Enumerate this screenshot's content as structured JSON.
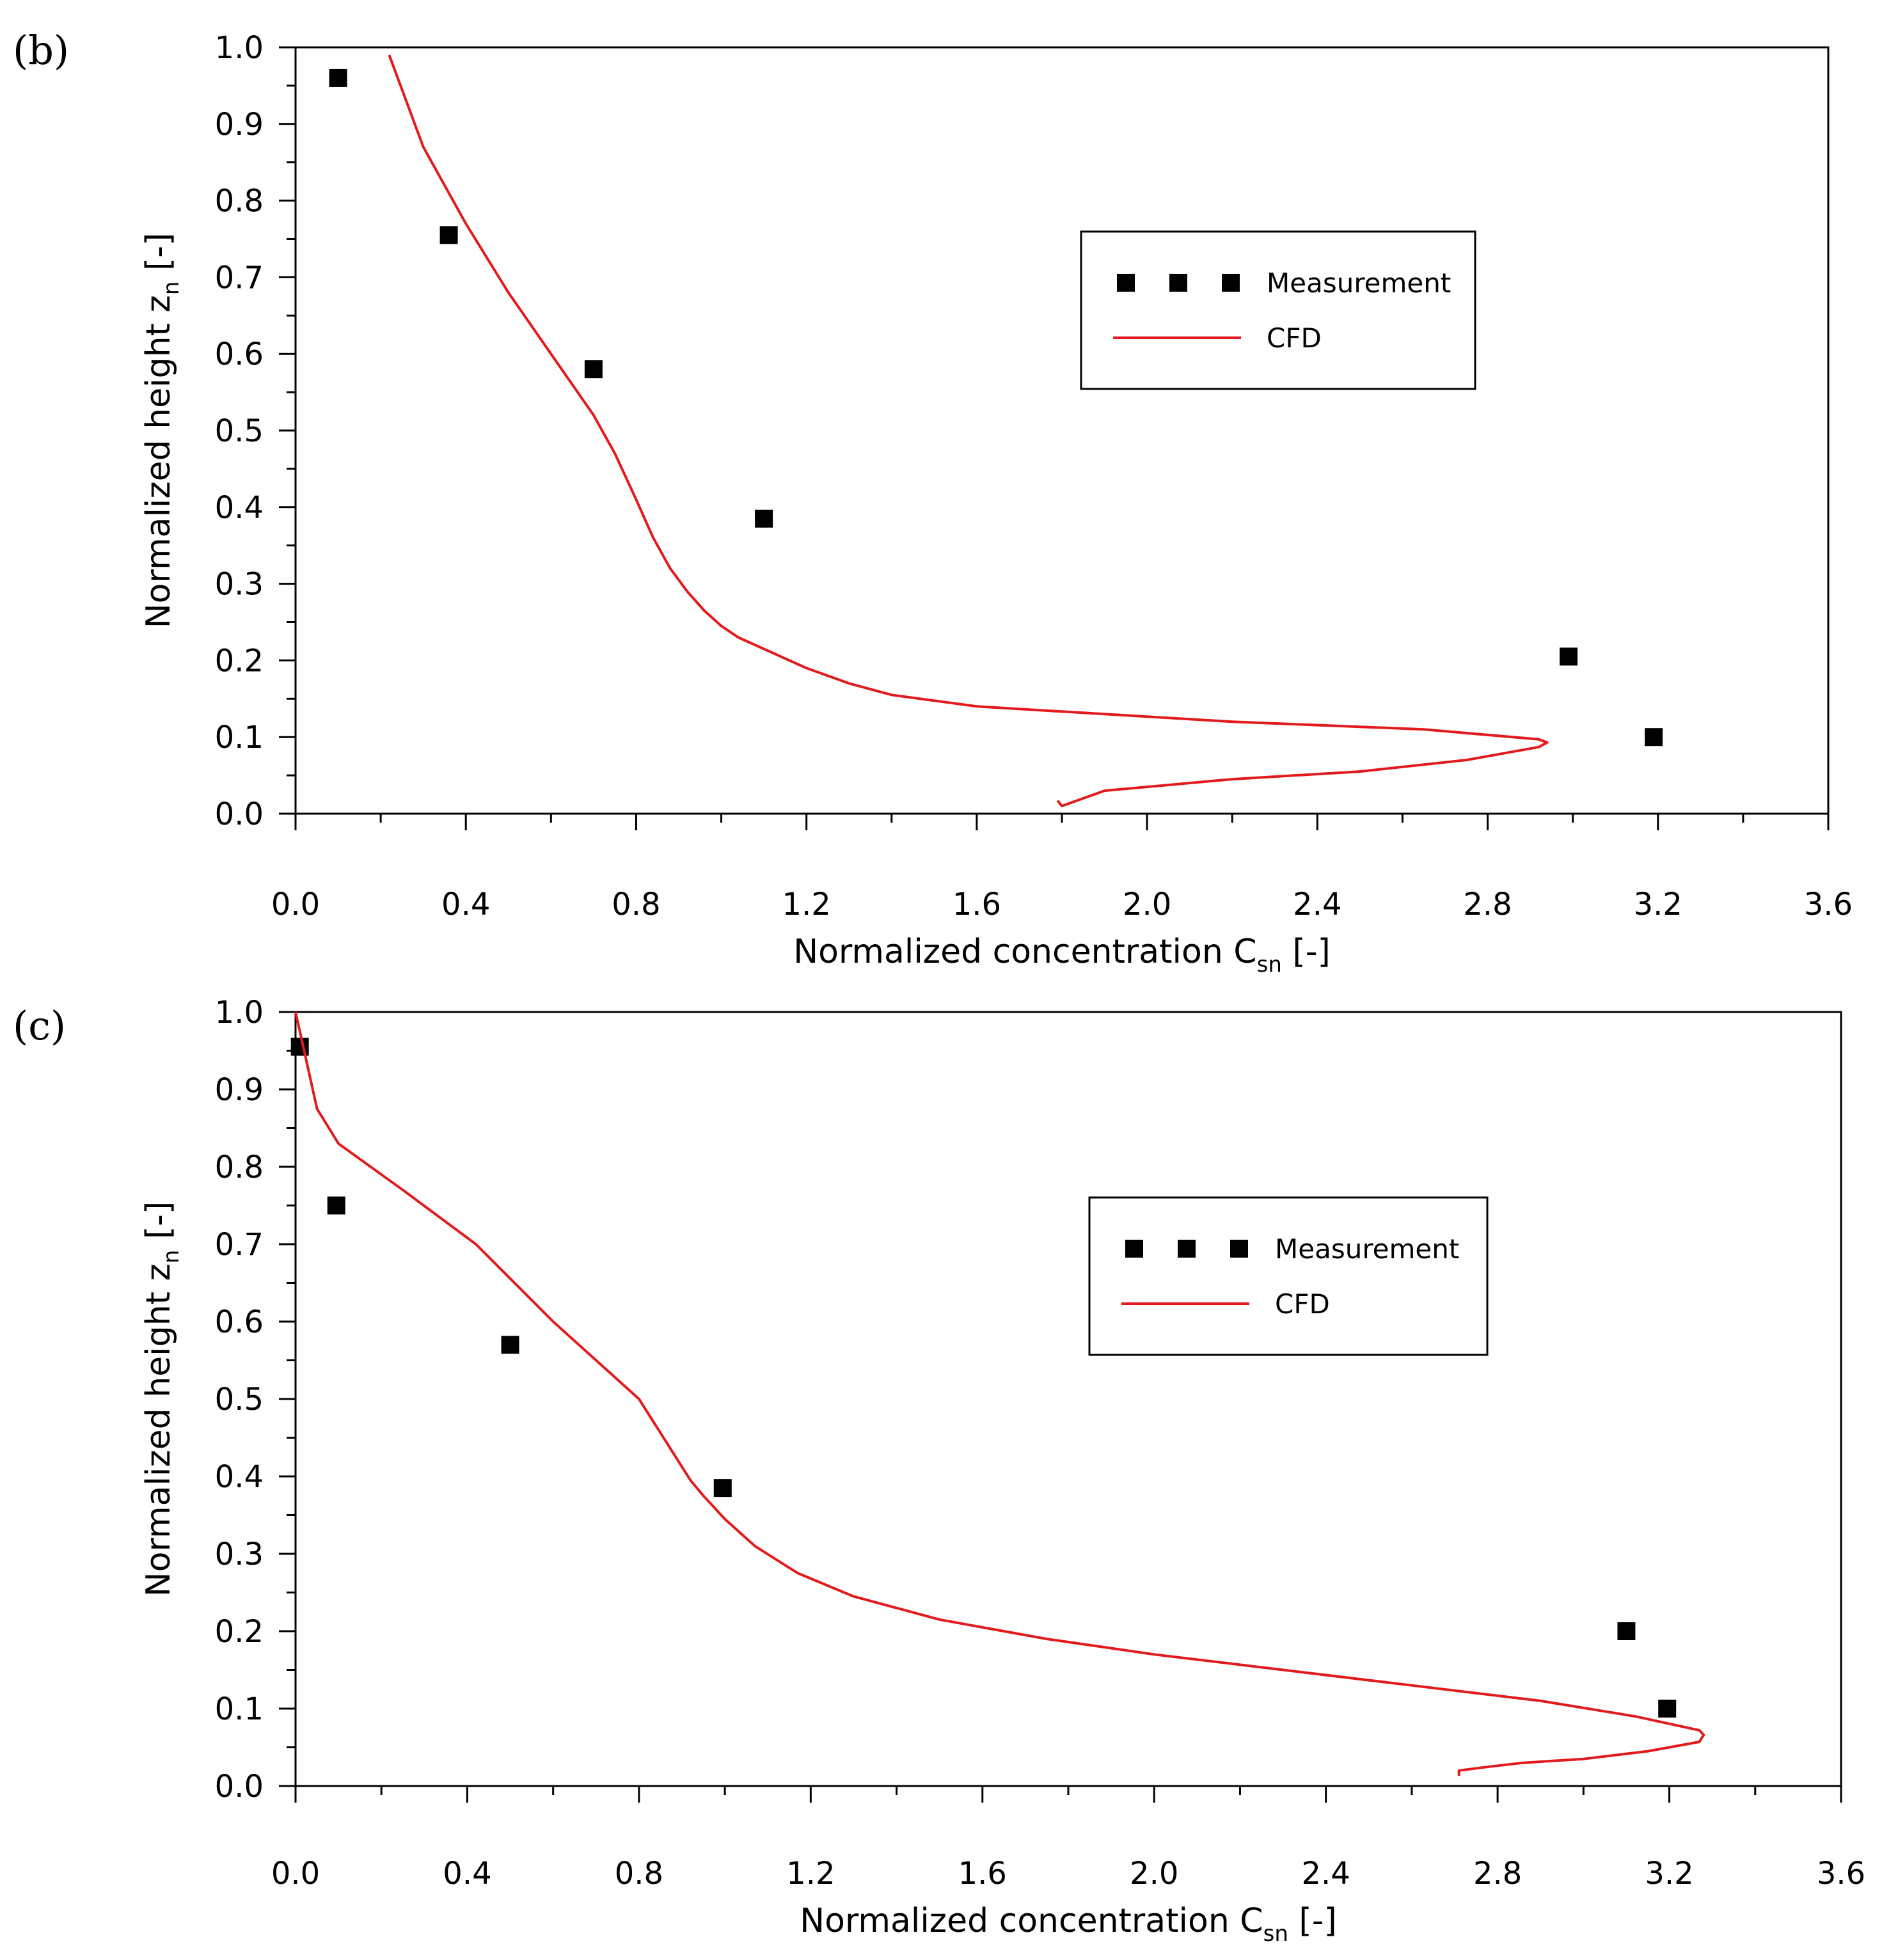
{
  "colors": {
    "measurement": "#000000",
    "cfd": "#e31a1c",
    "axis": "#000000"
  },
  "chart_data": [
    {
      "panel": "(b)",
      "type": "scatter",
      "xlabel": "Normalized concentration C",
      "xlabel_sub": "sn",
      "xlabel_suffix": " [-]",
      "ylabel": "Normalized height z",
      "ylabel_sub": "n",
      "ylabel_suffix": " [-]",
      "xlim": [
        0,
        3.6
      ],
      "ylim": [
        0,
        1.0
      ],
      "xticks": [
        "0.0",
        "0.4",
        "0.8",
        "1.2",
        "1.6",
        "2.0",
        "2.4",
        "2.8",
        "3.2",
        "3.6"
      ],
      "yticks": [
        "0.0",
        "0.1",
        "0.2",
        "0.3",
        "0.4",
        "0.5",
        "0.6",
        "0.7",
        "0.8",
        "0.9",
        "1.0"
      ],
      "legend": {
        "position": "upper-right",
        "measurement": "Measurement",
        "cfd": "CFD"
      },
      "series": [
        {
          "name": "Measurement",
          "type": "scatter",
          "x": [
            0.1,
            0.36,
            0.7,
            1.1,
            2.99,
            3.19
          ],
          "y": [
            0.96,
            0.755,
            0.58,
            0.385,
            0.205,
            0.1
          ]
        },
        {
          "name": "CFD",
          "type": "line",
          "x": [
            1.79,
            1.8,
            1.9,
            2.2,
            2.5,
            2.75,
            2.85,
            2.92,
            2.94,
            2.92,
            2.65,
            2.2,
            1.9,
            1.6,
            1.4,
            1.3,
            1.2,
            1.1,
            1.04,
            1.0,
            0.96,
            0.92,
            0.88,
            0.84,
            0.8,
            0.75,
            0.7,
            0.6,
            0.5,
            0.4,
            0.3,
            0.22
          ],
          "y": [
            0.017,
            0.01,
            0.03,
            0.045,
            0.055,
            0.07,
            0.08,
            0.087,
            0.093,
            0.097,
            0.11,
            0.12,
            0.13,
            0.14,
            0.155,
            0.17,
            0.19,
            0.215,
            0.23,
            0.245,
            0.265,
            0.29,
            0.32,
            0.36,
            0.41,
            0.47,
            0.52,
            0.6,
            0.68,
            0.77,
            0.87,
            0.99
          ]
        }
      ]
    },
    {
      "panel": "(c)",
      "type": "scatter",
      "xlabel": "Normalized concentration C",
      "xlabel_sub": "sn",
      "xlabel_suffix": " [-]",
      "ylabel": "Normalized height z",
      "ylabel_sub": "n",
      "ylabel_suffix": " [-]",
      "xlim": [
        0,
        3.6
      ],
      "ylim": [
        0,
        1.0
      ],
      "xticks": [
        "0.0",
        "0.4",
        "0.8",
        "1.2",
        "1.6",
        "2.0",
        "2.4",
        "2.8",
        "3.2",
        "3.6"
      ],
      "yticks": [
        "0.0",
        "0.1",
        "0.2",
        "0.3",
        "0.4",
        "0.5",
        "0.6",
        "0.7",
        "0.8",
        "0.9",
        "1.0"
      ],
      "legend": {
        "position": "upper-right",
        "measurement": "Measurement",
        "cfd": "CFD"
      },
      "series": [
        {
          "name": "Measurement",
          "type": "scatter",
          "x": [
            0.01,
            0.095,
            0.5,
            0.995,
            3.1,
            3.195
          ],
          "y": [
            0.955,
            0.75,
            0.57,
            0.385,
            0.2,
            0.1
          ]
        },
        {
          "name": "CFD",
          "type": "line",
          "x": [
            2.71,
            2.71,
            2.78,
            2.86,
            3.0,
            3.15,
            3.27,
            3.28,
            3.27,
            3.12,
            2.9,
            2.6,
            2.3,
            2.0,
            1.75,
            1.5,
            1.3,
            1.17,
            1.07,
            1.0,
            0.95,
            0.92,
            0.8,
            0.6,
            0.42,
            0.25,
            0.1,
            0.05,
            0.0
          ],
          "y": [
            0.013,
            0.02,
            0.025,
            0.03,
            0.035,
            0.045,
            0.057,
            0.066,
            0.072,
            0.09,
            0.11,
            0.13,
            0.15,
            0.17,
            0.19,
            0.215,
            0.245,
            0.275,
            0.31,
            0.345,
            0.375,
            0.395,
            0.5,
            0.6,
            0.7,
            0.77,
            0.83,
            0.875,
            1.0
          ]
        }
      ]
    }
  ]
}
